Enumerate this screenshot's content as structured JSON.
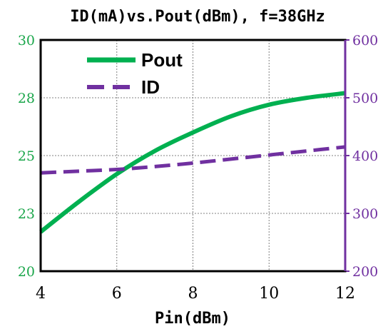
{
  "chart_data": {
    "type": "line",
    "title": "ID(mA)vs.Pout(dBm), f=38GHz",
    "xlabel": "Pin(dBm)",
    "ylabel_left": "",
    "ylabel_right": "",
    "xlim": [
      4,
      12
    ],
    "xticks": [
      4,
      6,
      8,
      10,
      12
    ],
    "ylim_left": [
      20,
      30
    ],
    "yticks_left": [
      "20",
      "23",
      "25",
      "28",
      "30"
    ],
    "ylim_right": [
      200,
      600
    ],
    "yticks_right": [
      200,
      300,
      400,
      500,
      600
    ],
    "grid": true,
    "legend_position": "top-left",
    "series": [
      {
        "name": "Pout",
        "axis": "left",
        "color": "#00b050",
        "style": "solid",
        "x": [
          4,
          5,
          6,
          7,
          8,
          9,
          10,
          11,
          12
        ],
        "y": [
          21.7,
          23.0,
          24.2,
          25.2,
          26.0,
          26.7,
          27.2,
          27.5,
          27.7
        ]
      },
      {
        "name": "ID",
        "axis": "right",
        "color": "#7030a0",
        "style": "dashed",
        "x": [
          4,
          5,
          6,
          7,
          8,
          9,
          10,
          11,
          12
        ],
        "y": [
          370,
          373,
          376,
          381,
          387,
          394,
          401,
          408,
          415
        ]
      }
    ]
  }
}
